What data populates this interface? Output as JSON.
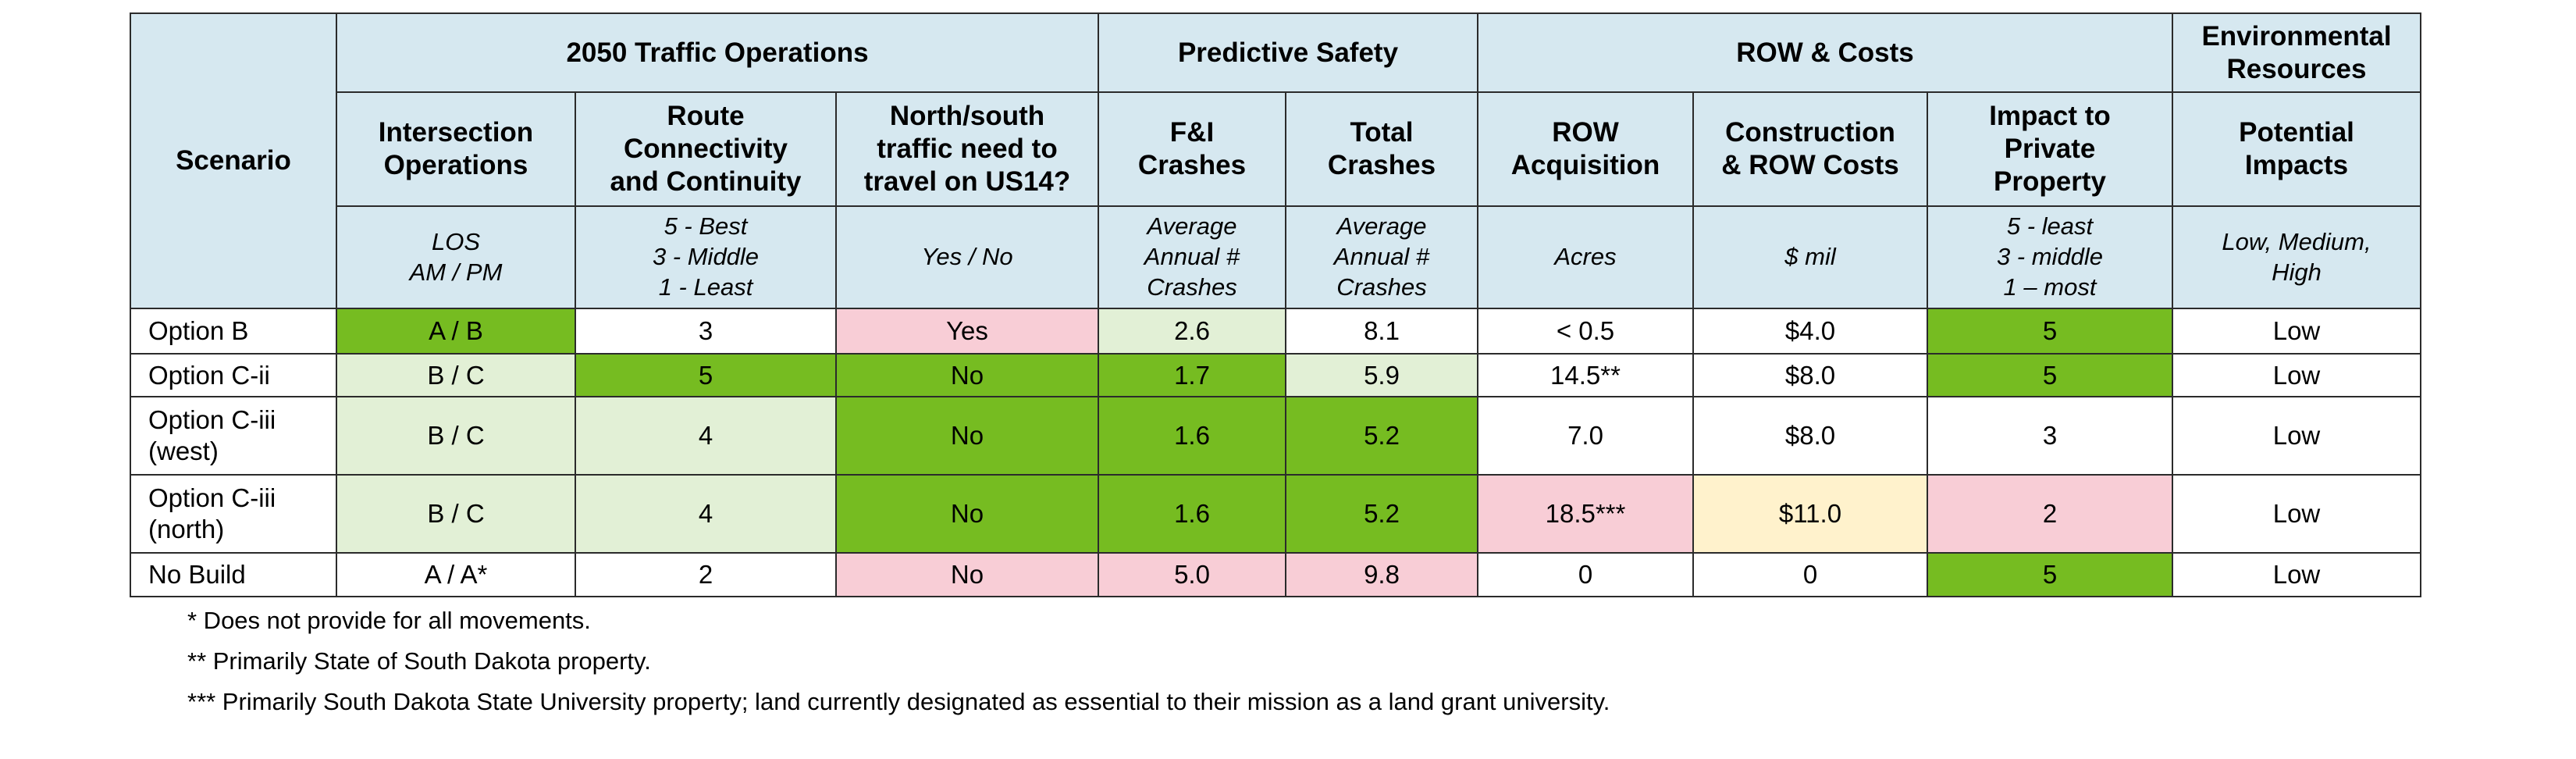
{
  "header": {
    "scenario": "Scenario",
    "groups": [
      {
        "id": "traffic",
        "label": "2050 Traffic Operations"
      },
      {
        "id": "safety",
        "label": "Predictive Safety"
      },
      {
        "id": "row",
        "label": "ROW & Costs"
      },
      {
        "id": "env",
        "label": "Environmental\nResources"
      }
    ],
    "columns": [
      {
        "label": "Intersection\nOperations",
        "unit": "LOS\nAM / PM"
      },
      {
        "label": "Route\nConnectivity\nand Continuity",
        "unit": "5 - Best\n3 - Middle\n1 - Least"
      },
      {
        "label": "North/south\ntraffic need to\ntravel on US14?",
        "unit": "Yes / No"
      },
      {
        "label": "F&I\nCrashes",
        "unit": "Average\nAnnual #\nCrashes"
      },
      {
        "label": "Total\nCrashes",
        "unit": "Average\nAnnual #\nCrashes"
      },
      {
        "label": "ROW\nAcquisition",
        "unit": "Acres"
      },
      {
        "label": "Construction\n& ROW Costs",
        "unit": "$ mil"
      },
      {
        "label": "Impact to\nPrivate\nProperty",
        "unit": "5 - least\n3 - middle\n1 – most"
      },
      {
        "label": "Potential\nImpacts",
        "unit": "Low, Medium,\nHigh"
      }
    ]
  },
  "rows": [
    {
      "scenario": "Option B",
      "cells": [
        "A / B",
        "3",
        "Yes",
        "2.6",
        "8.1",
        "< 0.5",
        "$4.0",
        "5",
        "Low"
      ]
    },
    {
      "scenario": "Option C-ii",
      "cells": [
        "B / C",
        "5",
        "No",
        "1.7",
        "5.9",
        "14.5**",
        "$8.0",
        "5",
        "Low"
      ]
    },
    {
      "scenario": "Option C-iii\n(west)",
      "cells": [
        "B / C",
        "4",
        "No",
        "1.6",
        "5.2",
        "7.0",
        "$8.0",
        "3",
        "Low"
      ]
    },
    {
      "scenario": "Option C-iii\n(north)",
      "cells": [
        "B / C",
        "4",
        "No",
        "1.6",
        "5.2",
        "18.5***",
        "$11.0",
        "2",
        "Low"
      ]
    },
    {
      "scenario": "No Build",
      "cells": [
        "A / A*",
        "2",
        "No",
        "5.0",
        "9.8",
        "0",
        "0",
        "5",
        "Low"
      ]
    }
  ],
  "colors": {
    "header_bg": "#d6e8f0",
    "dark_green": "#76bc21",
    "light_green": "#e2f0d6",
    "pink": "#f8cdd6",
    "yellow": "#fff2cc",
    "white": "#ffffff"
  },
  "cell_fills": [
    [
      "dark_green",
      "white",
      "pink",
      "light_green",
      "white",
      "white",
      "white",
      "dark_green",
      "white"
    ],
    [
      "light_green",
      "dark_green",
      "dark_green",
      "dark_green",
      "light_green",
      "white",
      "white",
      "dark_green",
      "white"
    ],
    [
      "light_green",
      "light_green",
      "dark_green",
      "dark_green",
      "dark_green",
      "white",
      "white",
      "white",
      "white"
    ],
    [
      "light_green",
      "light_green",
      "dark_green",
      "dark_green",
      "dark_green",
      "pink",
      "yellow",
      "pink",
      "white"
    ],
    [
      "white",
      "white",
      "pink",
      "pink",
      "pink",
      "white",
      "white",
      "dark_green",
      "white"
    ]
  ],
  "footnotes": [
    "* Does not provide for all movements.",
    "** Primarily State of South Dakota property.",
    "*** Primarily South Dakota State University property; land currently designated as essential to their mission as a land grant university."
  ]
}
